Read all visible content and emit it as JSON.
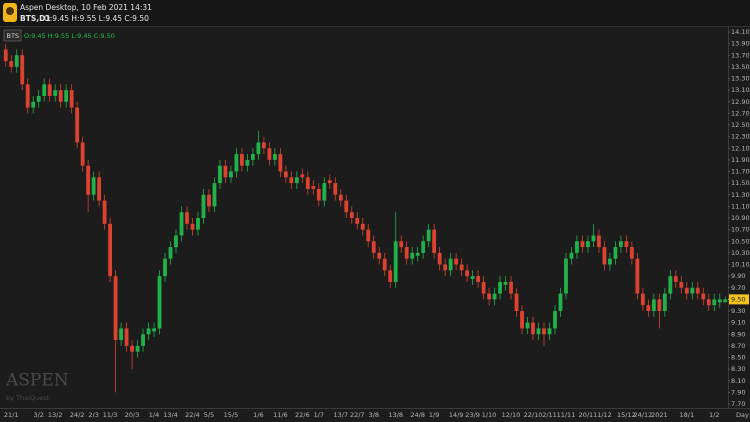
{
  "header": {
    "app": "Aspen Desktop, 10 Feb 2021 14:31",
    "symbol": "BTS,D1",
    "ohlc": "O:9.45 H:9.55 L:9.45 C:9.50"
  },
  "chart_data": {
    "type": "candlestick",
    "series_name": "BTS",
    "legend_values": "O:9.45 H:9.55 L:9.45 C:9.50",
    "watermark": "ASPEN",
    "watermark_sub": "by ThaiQuest",
    "x_axis_label": "Day",
    "up_color": "#22b04b",
    "down_color": "#d9432f",
    "ylim": [
      7.7,
      14.1
    ],
    "yticks": [
      {
        "value": 14.1,
        "label": "14.10"
      },
      {
        "value": 13.9,
        "label": "13.90"
      },
      {
        "value": 13.7,
        "label": "13.70"
      },
      {
        "value": 13.5,
        "label": "13.50"
      },
      {
        "value": 13.3,
        "label": "13.30"
      },
      {
        "value": 13.1,
        "label": "13.10"
      },
      {
        "value": 12.9,
        "label": "12.90"
      },
      {
        "value": 12.7,
        "label": "12.70"
      },
      {
        "value": 12.5,
        "label": "12.50"
      },
      {
        "value": 12.3,
        "label": "12.30"
      },
      {
        "value": 12.1,
        "label": "12.10"
      },
      {
        "value": 11.9,
        "label": "11.90"
      },
      {
        "value": 11.7,
        "label": "11.70"
      },
      {
        "value": 11.5,
        "label": "11.50"
      },
      {
        "value": 11.3,
        "label": "11.30"
      },
      {
        "value": 11.1,
        "label": "11.10"
      },
      {
        "value": 10.9,
        "label": "10.90"
      },
      {
        "value": 10.7,
        "label": "10.70"
      },
      {
        "value": 10.5,
        "label": "10.50"
      },
      {
        "value": 10.3,
        "label": "10.30"
      },
      {
        "value": 10.1,
        "label": "10.10"
      },
      {
        "value": 9.9,
        "label": "9.90"
      },
      {
        "value": 9.7,
        "label": "9.70"
      },
      {
        "value": 9.5,
        "label": "9.50"
      },
      {
        "value": 9.3,
        "label": "9.30"
      },
      {
        "value": 9.1,
        "label": "9.10"
      },
      {
        "value": 8.9,
        "label": "8.90"
      },
      {
        "value": 8.7,
        "label": "8.70"
      },
      {
        "value": 8.5,
        "label": "8.50"
      },
      {
        "value": 8.3,
        "label": "8.30"
      },
      {
        "value": 8.1,
        "label": "8.10"
      },
      {
        "value": 7.9,
        "label": "7.90"
      },
      {
        "value": 7.7,
        "label": "7.70"
      }
    ],
    "last_price": {
      "value": 9.5,
      "label": "9.50"
    },
    "categories": [
      null,
      "21/1",
      null,
      null,
      null,
      null,
      "3/2",
      null,
      null,
      "13/2",
      null,
      null,
      null,
      "24/2",
      null,
      null,
      "2/3",
      null,
      null,
      "11/3",
      null,
      null,
      null,
      "20/3",
      null,
      null,
      null,
      "1/4",
      null,
      null,
      "13/4",
      null,
      null,
      null,
      "22/4",
      null,
      null,
      "5/5",
      null,
      null,
      null,
      "15/5",
      null,
      null,
      null,
      null,
      "1/6",
      null,
      null,
      null,
      "11/6",
      null,
      null,
      null,
      "22/6",
      null,
      null,
      "1/7",
      null,
      null,
      null,
      "13/7",
      null,
      null,
      "22/7",
      null,
      null,
      "3/8",
      null,
      null,
      null,
      "13/8",
      null,
      null,
      null,
      "24/8",
      null,
      null,
      "1/9",
      null,
      null,
      null,
      "14/9",
      null,
      null,
      "23/9",
      null,
      null,
      "1/10",
      null,
      null,
      null,
      "12/10",
      null,
      null,
      null,
      "22/10",
      null,
      null,
      "2/11",
      null,
      null,
      "11/11",
      null,
      null,
      null,
      "20/11",
      null,
      null,
      "1/12",
      null,
      null,
      null,
      "15/12",
      null,
      null,
      "24/12",
      null,
      null,
      "2021",
      null,
      null,
      null,
      null,
      "18/1",
      null,
      null,
      null,
      null,
      "1/2",
      null,
      null
    ],
    "open": [
      13.8,
      13.6,
      13.5,
      13.7,
      13.2,
      12.8,
      12.9,
      13.0,
      13.2,
      13.0,
      13.1,
      12.9,
      13.1,
      12.8,
      12.2,
      11.8,
      11.3,
      11.6,
      11.2,
      10.8,
      9.9,
      8.8,
      9.0,
      8.7,
      8.6,
      8.7,
      8.9,
      8.95,
      9.0,
      9.9,
      10.2,
      10.4,
      10.6,
      11.0,
      10.8,
      10.7,
      10.9,
      11.3,
      11.1,
      11.5,
      11.8,
      11.6,
      11.7,
      12.0,
      11.8,
      11.9,
      12.0,
      12.2,
      12.1,
      11.9,
      12.0,
      11.7,
      11.6,
      11.5,
      11.65,
      11.6,
      11.45,
      11.4,
      11.2,
      11.55,
      11.5,
      11.3,
      11.2,
      11.0,
      10.9,
      10.8,
      10.7,
      10.5,
      10.3,
      10.2,
      10.0,
      9.8,
      10.5,
      10.4,
      10.2,
      10.25,
      10.3,
      10.5,
      10.7,
      10.3,
      10.1,
      10.0,
      10.2,
      10.1,
      10.0,
      9.85,
      9.9,
      9.8,
      9.6,
      9.5,
      9.6,
      9.75,
      9.8,
      9.6,
      9.3,
      9.0,
      9.1,
      8.9,
      9.0,
      8.9,
      9.0,
      9.3,
      9.6,
      10.2,
      10.3,
      10.5,
      10.4,
      10.5,
      10.6,
      10.4,
      10.1,
      10.2,
      10.4,
      10.5,
      10.4,
      10.2,
      9.6,
      9.4,
      9.3,
      9.5,
      9.3,
      9.6,
      9.9,
      9.8,
      9.7,
      9.6,
      9.7,
      9.6,
      9.5,
      9.4,
      9.45,
      9.45
    ],
    "high": [
      13.9,
      13.7,
      13.8,
      13.8,
      13.3,
      13.0,
      13.1,
      13.3,
      13.3,
      13.2,
      13.2,
      13.2,
      13.2,
      12.9,
      12.3,
      11.9,
      11.7,
      11.7,
      11.3,
      10.9,
      10.0,
      9.1,
      9.1,
      8.8,
      8.8,
      9.0,
      9.1,
      9.1,
      10.0,
      10.3,
      10.5,
      10.7,
      11.1,
      11.1,
      10.9,
      11.0,
      11.4,
      11.4,
      11.6,
      11.9,
      11.9,
      11.8,
      12.1,
      12.1,
      12.0,
      12.1,
      12.4,
      12.3,
      12.2,
      12.1,
      12.1,
      11.8,
      11.7,
      11.7,
      11.75,
      11.7,
      11.55,
      11.5,
      11.6,
      11.65,
      11.6,
      11.4,
      11.3,
      11.1,
      11.0,
      10.9,
      10.8,
      10.6,
      10.4,
      10.3,
      10.1,
      11.0,
      10.6,
      10.5,
      10.4,
      10.4,
      10.6,
      10.8,
      10.8,
      10.4,
      10.2,
      10.3,
      10.3,
      10.2,
      10.1,
      10.0,
      10.0,
      9.9,
      9.7,
      9.7,
      9.9,
      9.9,
      9.9,
      9.7,
      9.4,
      9.2,
      9.2,
      9.1,
      9.1,
      9.1,
      9.4,
      9.7,
      10.3,
      10.4,
      10.6,
      10.6,
      10.6,
      10.8,
      10.7,
      10.5,
      10.3,
      10.5,
      10.6,
      10.6,
      10.5,
      10.3,
      9.7,
      9.5,
      9.6,
      9.6,
      9.7,
      10.0,
      10.0,
      9.9,
      9.8,
      9.8,
      9.8,
      9.7,
      9.6,
      9.6,
      9.6,
      9.55
    ],
    "low": [
      13.5,
      13.4,
      13.4,
      13.1,
      12.7,
      12.7,
      12.8,
      12.9,
      12.9,
      12.9,
      12.8,
      12.8,
      12.7,
      12.1,
      11.7,
      11.0,
      11.2,
      11.1,
      10.7,
      9.8,
      7.9,
      8.7,
      8.6,
      8.3,
      8.5,
      8.6,
      8.8,
      8.85,
      8.9,
      9.8,
      10.1,
      10.3,
      10.5,
      10.7,
      10.6,
      10.6,
      10.8,
      11.0,
      11.0,
      11.4,
      11.5,
      11.5,
      11.6,
      11.7,
      11.7,
      11.8,
      11.9,
      12.0,
      11.8,
      11.8,
      11.6,
      11.5,
      11.4,
      11.4,
      11.5,
      11.3,
      11.3,
      11.1,
      11.1,
      11.4,
      11.2,
      11.1,
      10.9,
      10.8,
      10.7,
      10.6,
      10.4,
      10.2,
      10.1,
      9.9,
      9.7,
      9.7,
      10.3,
      10.1,
      10.1,
      10.15,
      10.2,
      10.4,
      10.2,
      10.0,
      9.9,
      9.9,
      10.0,
      9.9,
      9.8,
      9.75,
      9.7,
      9.5,
      9.4,
      9.4,
      9.5,
      9.65,
      9.5,
      9.2,
      8.9,
      8.9,
      8.8,
      8.8,
      8.7,
      8.8,
      8.9,
      9.2,
      9.5,
      10.1,
      10.2,
      10.3,
      10.3,
      10.4,
      10.3,
      10.0,
      10.0,
      10.1,
      10.3,
      10.3,
      10.1,
      9.5,
      9.3,
      9.2,
      9.2,
      9.0,
      9.2,
      9.5,
      9.7,
      9.6,
      9.5,
      9.5,
      9.5,
      9.4,
      9.3,
      9.3,
      9.35,
      9.45
    ],
    "close": [
      13.6,
      13.5,
      13.7,
      13.2,
      12.8,
      12.9,
      13.0,
      13.2,
      13.0,
      13.1,
      12.9,
      13.1,
      12.8,
      12.2,
      11.8,
      11.3,
      11.6,
      11.2,
      10.8,
      9.9,
      8.8,
      9.0,
      8.7,
      8.6,
      8.7,
      8.9,
      9.0,
      9.0,
      9.9,
      10.2,
      10.4,
      10.6,
      11.0,
      10.8,
      10.7,
      10.9,
      11.3,
      11.1,
      11.5,
      11.8,
      11.6,
      11.7,
      12.0,
      11.8,
      11.9,
      12.0,
      12.2,
      12.1,
      11.9,
      12.0,
      11.7,
      11.6,
      11.5,
      11.6,
      11.6,
      11.4,
      11.4,
      11.2,
      11.5,
      11.5,
      11.3,
      11.2,
      11.0,
      10.9,
      10.8,
      10.7,
      10.5,
      10.3,
      10.2,
      10.0,
      9.8,
      10.5,
      10.4,
      10.2,
      10.3,
      10.3,
      10.5,
      10.7,
      10.3,
      10.1,
      10.0,
      10.2,
      10.1,
      10.0,
      9.9,
      9.9,
      9.8,
      9.6,
      9.5,
      9.6,
      9.8,
      9.8,
      9.6,
      9.3,
      9.0,
      9.1,
      8.9,
      9.0,
      8.9,
      9.0,
      9.3,
      9.6,
      10.2,
      10.3,
      10.5,
      10.4,
      10.5,
      10.6,
      10.4,
      10.1,
      10.2,
      10.4,
      10.5,
      10.4,
      10.2,
      9.6,
      9.4,
      9.3,
      9.5,
      9.3,
      9.6,
      9.9,
      9.8,
      9.7,
      9.6,
      9.7,
      9.6,
      9.5,
      9.4,
      9.5,
      9.5,
      9.5
    ]
  }
}
